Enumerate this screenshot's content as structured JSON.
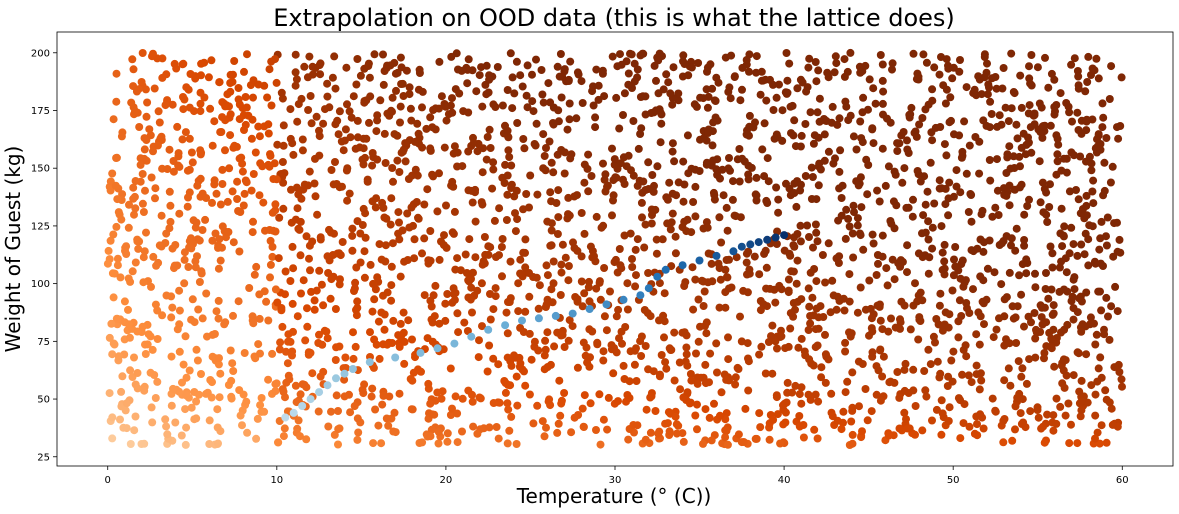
{
  "chart_data": {
    "type": "scatter",
    "title": "Extrapolation on OOD data (this is what the lattice does)",
    "xlabel": "Temperature (° (C))",
    "ylabel": "Weight of Guest (kg)",
    "xlim": [
      -3,
      63
    ],
    "ylim": [
      21,
      209
    ],
    "x_ticks": [
      0,
      10,
      20,
      30,
      40,
      50,
      60
    ],
    "y_ticks": [
      25,
      50,
      75,
      100,
      125,
      150,
      175,
      200
    ],
    "grid": false,
    "legend": "none",
    "background_series": {
      "name": "",
      "colormap": "Oranges",
      "description_of_values": "uniformly scattered points, x from 0 to 60, y from 30 to 200, colored light to dark orange by increasing x and y",
      "x_range": [
        0,
        60
      ],
      "y_range": [
        30,
        200
      ],
      "point_count": 3000
    },
    "trajectory_series": {
      "name": "",
      "colormap": "Blues",
      "points": [
        {
          "x": 10.5,
          "y": 42
        },
        {
          "x": 11.0,
          "y": 44
        },
        {
          "x": 11.5,
          "y": 47
        },
        {
          "x": 12.0,
          "y": 50
        },
        {
          "x": 12.5,
          "y": 53
        },
        {
          "x": 13.0,
          "y": 56
        },
        {
          "x": 13.5,
          "y": 59
        },
        {
          "x": 14.0,
          "y": 61
        },
        {
          "x": 14.5,
          "y": 63
        },
        {
          "x": 15.5,
          "y": 66
        },
        {
          "x": 17.0,
          "y": 68
        },
        {
          "x": 18.5,
          "y": 70
        },
        {
          "x": 19.5,
          "y": 72
        },
        {
          "x": 20.5,
          "y": 74
        },
        {
          "x": 21.5,
          "y": 77
        },
        {
          "x": 22.5,
          "y": 80
        },
        {
          "x": 23.5,
          "y": 82
        },
        {
          "x": 24.5,
          "y": 84
        },
        {
          "x": 25.5,
          "y": 85
        },
        {
          "x": 26.5,
          "y": 86
        },
        {
          "x": 27.5,
          "y": 87
        },
        {
          "x": 28.5,
          "y": 89
        },
        {
          "x": 29.5,
          "y": 91
        },
        {
          "x": 30.5,
          "y": 93
        },
        {
          "x": 31.5,
          "y": 95
        },
        {
          "x": 32.0,
          "y": 98
        },
        {
          "x": 32.5,
          "y": 103
        },
        {
          "x": 33.0,
          "y": 106
        },
        {
          "x": 34.0,
          "y": 108
        },
        {
          "x": 35.0,
          "y": 110
        },
        {
          "x": 36.0,
          "y": 112
        },
        {
          "x": 37.0,
          "y": 114
        },
        {
          "x": 37.5,
          "y": 116
        },
        {
          "x": 38.0,
          "y": 117
        },
        {
          "x": 38.5,
          "y": 118
        },
        {
          "x": 39.0,
          "y": 119
        },
        {
          "x": 39.5,
          "y": 120
        },
        {
          "x": 40.0,
          "y": 121
        }
      ]
    },
    "colors": {
      "oranges_light": "#fff5eb",
      "oranges_mid": "#fd8d3c",
      "oranges_dark": "#7f2704",
      "blues_light": "#deebf7",
      "blues_mid": "#6baed6",
      "blues_dark": "#08306b"
    }
  }
}
